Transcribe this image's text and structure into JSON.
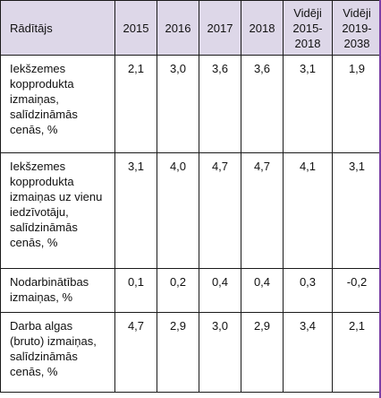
{
  "table": {
    "headers": [
      "Rādītājs",
      "2015",
      "2016",
      "2017",
      "2018",
      "Vidēji 2015-2018",
      "Vidēji 2019-2038"
    ],
    "header_lines": [
      [
        "Rādītājs"
      ],
      [
        "2015"
      ],
      [
        "2016"
      ],
      [
        "2017"
      ],
      [
        "2018"
      ],
      [
        "Vidēji",
        "2015-",
        "2018"
      ],
      [
        "Vidēji",
        "2019-",
        "2038"
      ]
    ],
    "rows": [
      {
        "label": "Iekšzemes kopprodukta izmaiņas, salīdzināmās cenās, %",
        "label_lines": [
          "Iekšzemes",
          "kopprodukta",
          "izmaiņas,",
          "salīdzināmās",
          "cenās, %"
        ],
        "values": [
          "2,1",
          "3,0",
          "3,6",
          "3,6",
          "3,1",
          "1,9"
        ]
      },
      {
        "label": "Iekšzemes kopprodukta izmaiņas uz vienu iedzīvotāju, salīdzināmās cenās, %",
        "label_lines": [
          "Iekšzemes",
          "kopprodukta",
          "izmaiņas uz vienu",
          "iedzīvotāju,",
          "salīdzināmās",
          "cenās, %"
        ],
        "values": [
          "3,1",
          "4,0",
          "4,7",
          "4,7",
          "4,1",
          "3,1"
        ]
      },
      {
        "label": "Nodarbinātības izmaiņas, %",
        "label_lines": [
          "Nodarbinātības",
          "izmaiņas, %"
        ],
        "values": [
          "0,1",
          "0,2",
          "0,4",
          "0,4",
          "0,3",
          "-0,2"
        ]
      },
      {
        "label": "Darba algas (bruto) izmaiņas, salīdzināmās cenās, %",
        "label_lines": [
          "Darba algas",
          "(bruto) izmaiņas,",
          "salīdzināmās",
          "cenās, %"
        ],
        "values": [
          "4,7",
          "2,9",
          "3,0",
          "2,9",
          "3,4",
          "2,1"
        ]
      }
    ]
  },
  "colors": {
    "header_background": "#ddd7e8",
    "border": "#1a1a1a",
    "accent": "#7b3fa6"
  }
}
